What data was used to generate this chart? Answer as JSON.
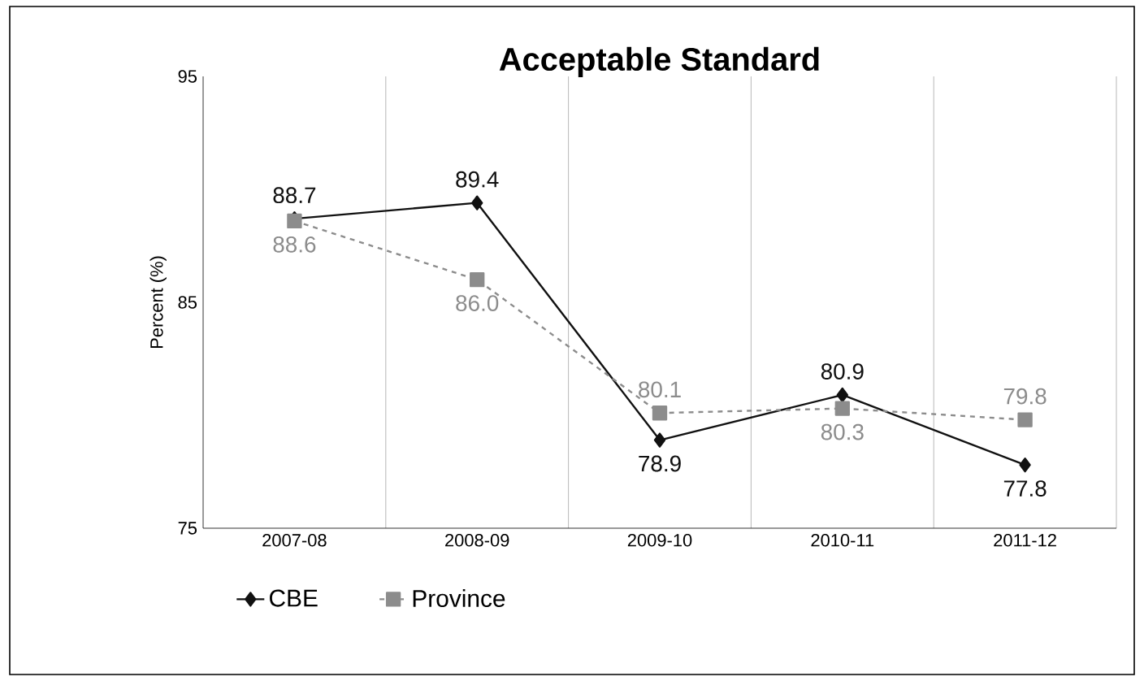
{
  "chart_data": {
    "type": "line",
    "title": "Acceptable Standard",
    "ylabel": "Percent (%)",
    "categories": [
      "2007-08",
      "2008-09",
      "2009-10",
      "2010-11",
      "2011-12"
    ],
    "series": [
      {
        "name": "CBE",
        "color": "#111111",
        "values": [
          88.7,
          89.4,
          78.9,
          80.9,
          77.8
        ],
        "marker": "diamond",
        "line_style": "solid",
        "value_labels": [
          "88.7",
          "89.4",
          "78.9",
          "80.9",
          "77.8"
        ]
      },
      {
        "name": "Province",
        "color": "#8c8c8c",
        "values": [
          88.6,
          86.0,
          80.1,
          80.3,
          79.8
        ],
        "marker": "square",
        "line_style": "dashed",
        "value_labels": [
          "88.6",
          "86.0",
          "80.1",
          "80.3",
          "79.8"
        ]
      }
    ],
    "ylim": [
      75,
      95
    ],
    "yticks": [
      75,
      85,
      95
    ],
    "grid": "x",
    "legend": "bottom"
  }
}
